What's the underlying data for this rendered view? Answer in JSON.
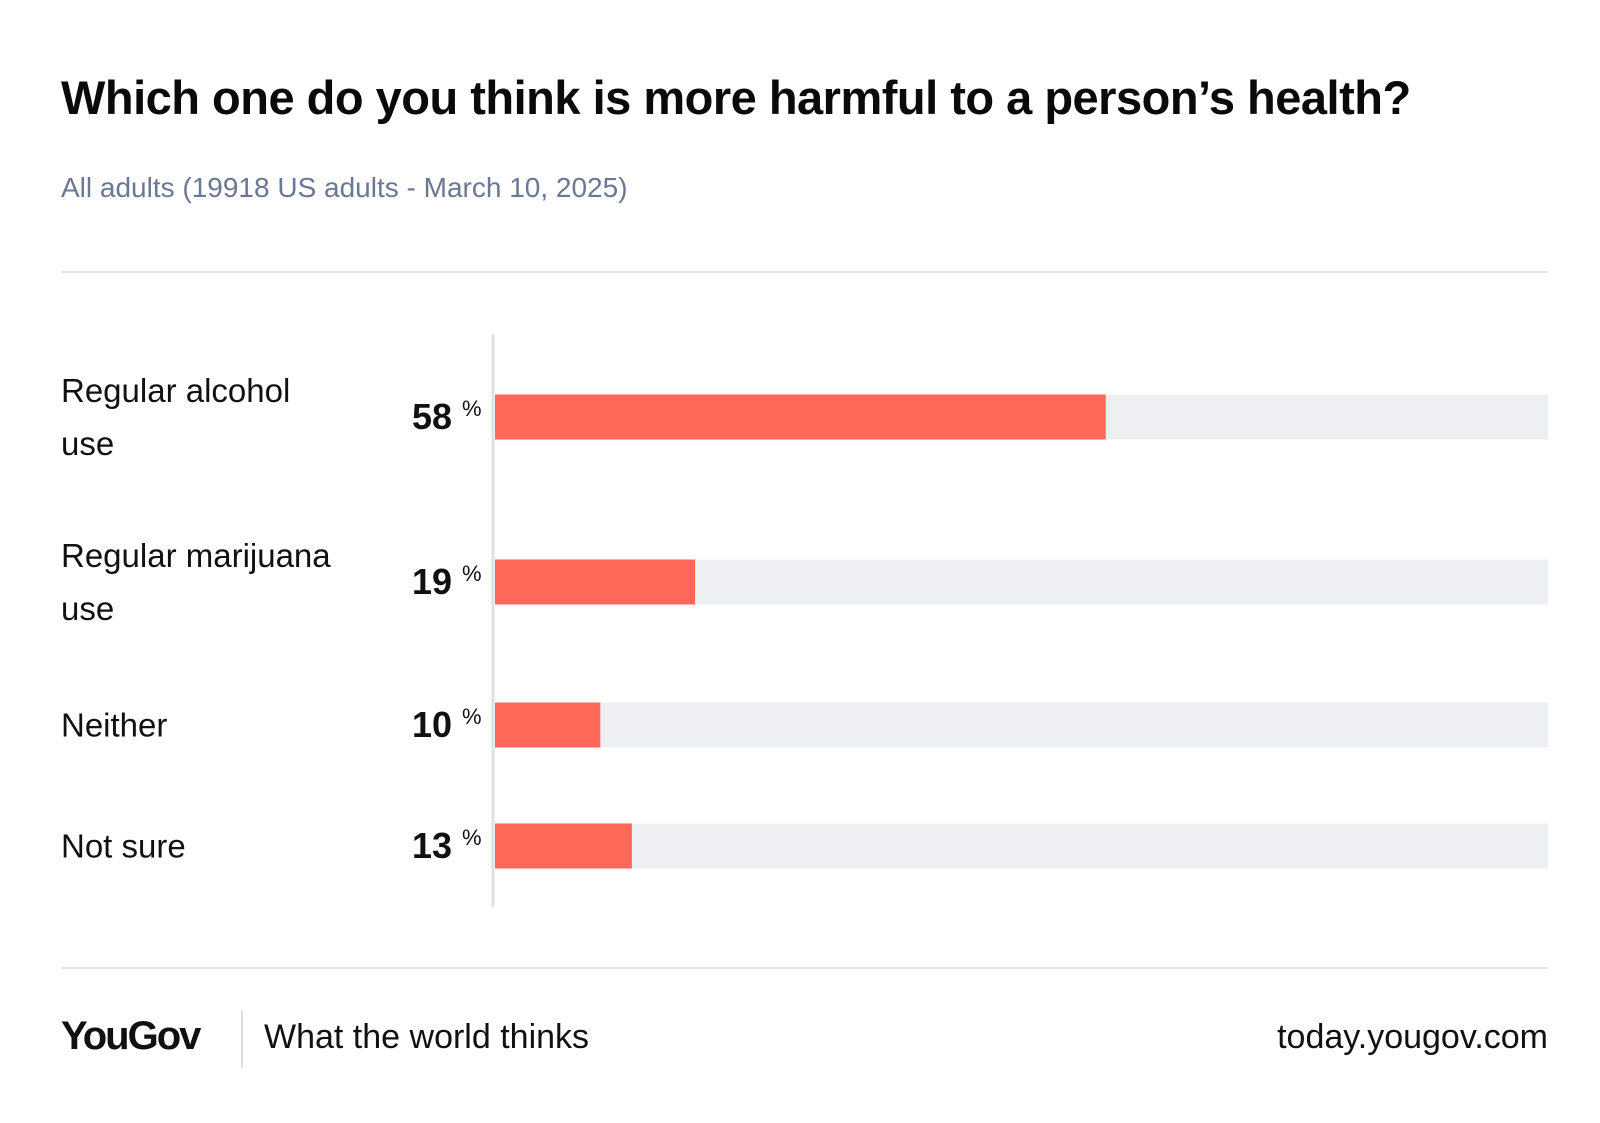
{
  "chart_data": {
    "type": "bar",
    "orientation": "horizontal",
    "title": "Which one do you think is more harmful to a person’s health?",
    "subtitle": "All adults (19918 US adults - March 10, 2025)",
    "categories": [
      "Regular alcohol use",
      "Regular marijuana use",
      "Neither",
      "Not sure"
    ],
    "values": [
      58,
      19,
      10,
      13
    ],
    "value_suffix": "%",
    "color": "#ff6758",
    "track_color": "#eeeff3",
    "xlim": [
      0,
      100
    ]
  },
  "footer": {
    "brand": "YouGov",
    "tagline": "What the world thinks",
    "url": "today.yougov.com"
  }
}
